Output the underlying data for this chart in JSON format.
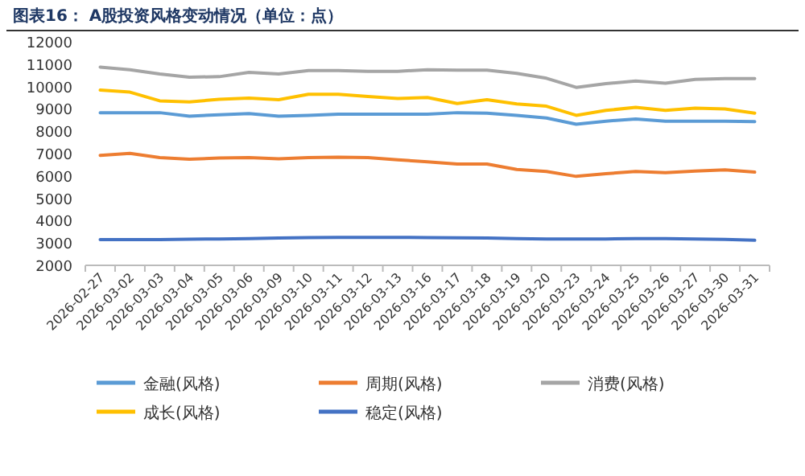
{
  "chart_data": {
    "type": "line",
    "title": "图表16： A股投资风格变动情况（单位：点）",
    "categories": [
      "2026-02-27",
      "2026-03-02",
      "2026-03-03",
      "2026-03-04",
      "2026-03-05",
      "2026-03-06",
      "2026-03-09",
      "2026-03-10",
      "2026-03-11",
      "2026-03-12",
      "2026-03-13",
      "2026-03-16",
      "2026-03-17",
      "2026-03-18",
      "2026-03-19",
      "2026-03-20",
      "2026-03-23",
      "2026-03-24",
      "2026-03-25",
      "2026-03-26",
      "2026-03-27",
      "2026-03-30",
      "2026-03-31"
    ],
    "series": [
      {
        "name": "金融(风格)",
        "color": "#5b9bd5",
        "values": [
          8830,
          8830,
          8830,
          8670,
          8740,
          8790,
          8670,
          8710,
          8760,
          8760,
          8760,
          8760,
          8830,
          8810,
          8710,
          8590,
          8310,
          8450,
          8550,
          8450,
          8450,
          8450,
          8430
        ]
      },
      {
        "name": "周期(风格)",
        "color": "#ed7d31",
        "values": [
          6920,
          7010,
          6820,
          6750,
          6800,
          6820,
          6770,
          6820,
          6840,
          6820,
          6720,
          6630,
          6530,
          6530,
          6290,
          6200,
          5980,
          6100,
          6200,
          6150,
          6220,
          6270,
          6170
        ]
      },
      {
        "name": "消费(风格)",
        "color": "#a5a5a5",
        "values": [
          10870,
          10750,
          10560,
          10420,
          10440,
          10630,
          10560,
          10710,
          10710,
          10680,
          10680,
          10750,
          10730,
          10730,
          10590,
          10370,
          9960,
          10130,
          10250,
          10150,
          10320,
          10350,
          10350
        ]
      },
      {
        "name": "成长(风格)",
        "color": "#ffc000",
        "values": [
          9840,
          9750,
          9360,
          9310,
          9430,
          9480,
          9410,
          9650,
          9650,
          9550,
          9460,
          9510,
          9240,
          9410,
          9220,
          9120,
          8710,
          8930,
          9070,
          8930,
          9030,
          9000,
          8810
        ]
      },
      {
        "name": "稳定(风格)",
        "color": "#4472c4",
        "values": [
          3150,
          3150,
          3150,
          3170,
          3180,
          3200,
          3220,
          3240,
          3250,
          3250,
          3250,
          3240,
          3230,
          3220,
          3200,
          3180,
          3180,
          3180,
          3200,
          3200,
          3180,
          3160,
          3120
        ]
      }
    ],
    "ylim": [
      2000,
      12000
    ],
    "yticks": [
      2000,
      3000,
      4000,
      5000,
      6000,
      7000,
      8000,
      9000,
      10000,
      11000,
      12000
    ],
    "legend": "bottom"
  }
}
